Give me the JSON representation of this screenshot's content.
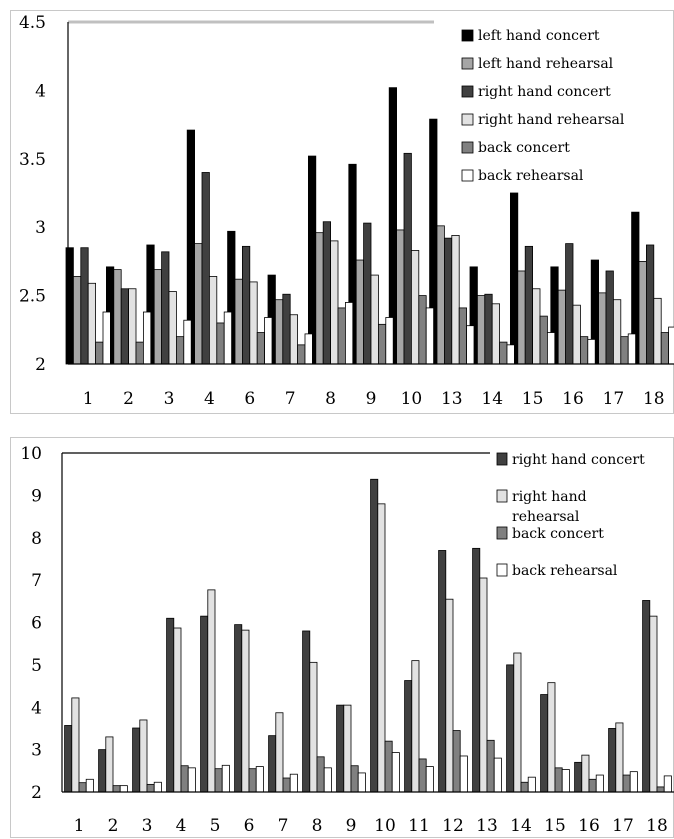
{
  "chart_data": [
    {
      "type": "bar",
      "categories": [
        "1",
        "2",
        "3",
        "4",
        "6",
        "7",
        "8",
        "9",
        "10",
        "13",
        "14",
        "15",
        "16",
        "17",
        "18"
      ],
      "ylim": [
        2,
        4.5
      ],
      "yticks": [
        2,
        2.5,
        3,
        3.5,
        4,
        4.5
      ],
      "ytick_labels": [
        "2",
        "2.5",
        "3",
        "3.5",
        "4",
        "4.5"
      ],
      "legend": "top-right",
      "grid": false,
      "series": [
        {
          "name": "left hand concert",
          "color": "#000000",
          "values": [
            2.85,
            2.71,
            2.87,
            3.71,
            2.97,
            2.65,
            3.52,
            3.46,
            4.02,
            3.79,
            2.71,
            3.25,
            2.71,
            2.76,
            3.11
          ]
        },
        {
          "name": "left hand rehearsal",
          "color": "#a6a6a6",
          "values": [
            2.64,
            2.69,
            2.69,
            2.88,
            2.62,
            2.47,
            2.96,
            2.76,
            2.98,
            3.01,
            2.5,
            2.68,
            2.54,
            2.52,
            2.75
          ]
        },
        {
          "name": "right hand concert",
          "color": "#404040",
          "values": [
            2.85,
            2.55,
            2.82,
            3.4,
            2.86,
            2.51,
            3.04,
            3.03,
            3.54,
            2.92,
            2.51,
            2.86,
            2.88,
            2.68,
            2.87
          ]
        },
        {
          "name": "right hand rehearsal",
          "color": "#e2e2e2",
          "values": [
            2.59,
            2.55,
            2.53,
            2.64,
            2.6,
            2.36,
            2.9,
            2.65,
            2.83,
            2.94,
            2.44,
            2.55,
            2.43,
            2.47,
            2.48
          ]
        },
        {
          "name": "back concert",
          "color": "#808080",
          "values": [
            2.16,
            2.16,
            2.2,
            2.3,
            2.23,
            2.14,
            2.41,
            2.29,
            2.5,
            2.41,
            2.16,
            2.35,
            2.2,
            2.2,
            2.23
          ]
        },
        {
          "name": "back rehearsal",
          "color": "#ffffff",
          "values": [
            2.38,
            2.38,
            2.32,
            2.38,
            2.34,
            2.22,
            2.45,
            2.34,
            2.41,
            2.28,
            2.14,
            2.23,
            2.18,
            2.22,
            2.27
          ]
        }
      ]
    },
    {
      "type": "bar",
      "categories": [
        "1",
        "2",
        "3",
        "4",
        "5",
        "6",
        "7",
        "8",
        "9",
        "10",
        "11",
        "12",
        "13",
        "14",
        "15",
        "16",
        "17",
        "18"
      ],
      "ylim": [
        2,
        10
      ],
      "yticks": [
        2,
        3,
        4,
        5,
        6,
        7,
        8,
        9,
        10
      ],
      "ytick_labels": [
        "2",
        "3",
        "4",
        "5",
        "6",
        "7",
        "8",
        "9",
        "10"
      ],
      "legend": "top-right",
      "grid": false,
      "series": [
        {
          "name": "right hand concert",
          "legend_lines": [
            "right hand concert"
          ],
          "color": "#404040",
          "values": [
            3.57,
            3.0,
            3.51,
            6.1,
            6.15,
            5.95,
            3.33,
            5.8,
            4.05,
            9.38,
            4.63,
            7.7,
            7.75,
            5.0,
            4.3,
            2.7,
            3.5,
            6.52
          ]
        },
        {
          "name": "right hand rehearsal",
          "legend_lines": [
            "right hand",
            "rehearsal"
          ],
          "color": "#e2e2e2",
          "values": [
            4.22,
            3.3,
            3.7,
            5.87,
            6.77,
            5.82,
            3.87,
            5.06,
            4.05,
            8.8,
            5.1,
            6.55,
            7.05,
            5.28,
            4.58,
            2.87,
            3.63,
            6.15
          ]
        },
        {
          "name": "back concert",
          "legend_lines": [
            "back concert"
          ],
          "color": "#808080",
          "values": [
            2.22,
            2.15,
            2.18,
            2.62,
            2.55,
            2.55,
            2.33,
            2.83,
            2.62,
            3.2,
            2.78,
            3.45,
            3.22,
            2.23,
            2.57,
            2.3,
            2.4,
            2.12
          ]
        },
        {
          "name": "back rehearsal",
          "legend_lines": [
            "back rehearsal"
          ],
          "color": "#ffffff",
          "values": [
            2.3,
            2.15,
            2.23,
            2.57,
            2.63,
            2.6,
            2.42,
            2.57,
            2.45,
            2.93,
            2.6,
            2.85,
            2.8,
            2.35,
            2.53,
            2.4,
            2.48,
            2.38
          ]
        }
      ]
    }
  ]
}
